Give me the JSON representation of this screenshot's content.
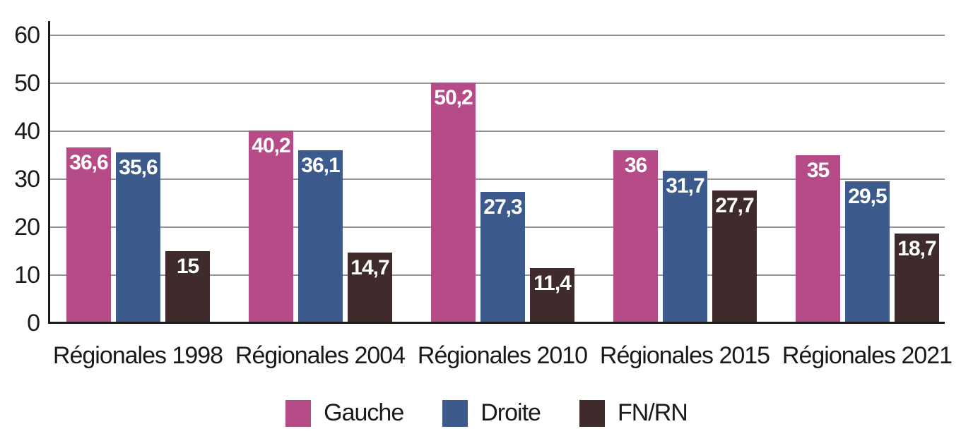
{
  "chart_data": {
    "type": "bar",
    "title": "",
    "xlabel": "",
    "ylabel": "",
    "categories": [
      "Régionales 1998",
      "Régionales 2004",
      "Régionales 2010",
      "Régionales 2015",
      "Régionales 2021"
    ],
    "series": [
      {
        "name": "Gauche",
        "color": "#b54c87",
        "values": [
          36.6,
          40.2,
          50.2,
          36,
          35
        ]
      },
      {
        "name": "Droite",
        "color": "#3c5b8c",
        "values": [
          35.6,
          36.1,
          27.3,
          31.7,
          29.5
        ]
      },
      {
        "name": "FN/RN",
        "color": "#3f2a2c",
        "values": [
          15,
          14.7,
          11.4,
          27.7,
          18.7
        ]
      }
    ],
    "value_labels": [
      [
        "36,6",
        "40,2",
        "50,2",
        "36",
        "35"
      ],
      [
        "35,6",
        "36,1",
        "27,3",
        "31,7",
        "29,5"
      ],
      [
        "15",
        "14,7",
        "11,4",
        "27,7",
        "18,7"
      ]
    ],
    "ylim": [
      0,
      60
    ],
    "yticks": [
      "0",
      "10",
      "20",
      "30",
      "40",
      "50",
      "60"
    ],
    "grid": true,
    "legend_position": "bottom",
    "colors": {
      "gridline": "#949494",
      "axis": "#1a1a1a",
      "value_label_text": "#ffffff",
      "background": "#ffffff"
    }
  }
}
